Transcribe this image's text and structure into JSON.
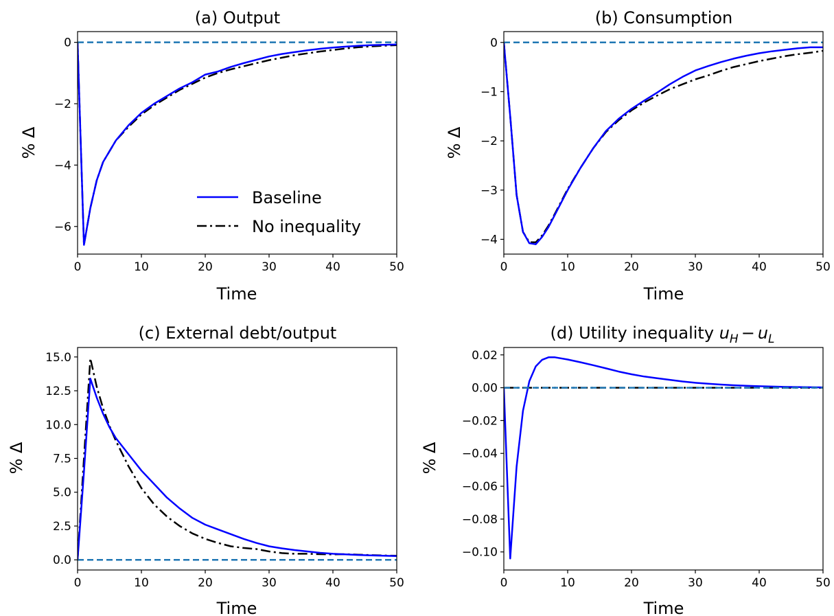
{
  "chart_data": [
    {
      "type": "line",
      "title": "(a) Output",
      "xlabel": "Time",
      "ylabel": "% Δ",
      "xlim": [
        0,
        50
      ],
      "ylim": [
        -6.9,
        0.35
      ],
      "xticks": [
        "0",
        "10",
        "20",
        "30",
        "40",
        "50"
      ],
      "yticks": [
        "0",
        "−2",
        "−4",
        "−6"
      ],
      "ytick_values": [
        0,
        -2,
        -4,
        -6
      ],
      "grid": false,
      "legend_position": "lower-right",
      "legend": [
        "Baseline",
        "No inequality"
      ],
      "series": [
        {
          "name": "Baseline",
          "color": "#0000ff",
          "style": "solid",
          "x": [
            0,
            1,
            2,
            3,
            4,
            6,
            8,
            10,
            12,
            14,
            16,
            18,
            20,
            22,
            24,
            26,
            28,
            30,
            32,
            34,
            36,
            38,
            40,
            42,
            44,
            46,
            48,
            50
          ],
          "y": [
            0,
            -6.6,
            -5.4,
            -4.5,
            -3.9,
            -3.2,
            -2.7,
            -2.3,
            -2.0,
            -1.75,
            -1.5,
            -1.3,
            -1.05,
            -0.95,
            -0.8,
            -0.68,
            -0.57,
            -0.46,
            -0.38,
            -0.32,
            -0.26,
            -0.21,
            -0.17,
            -0.14,
            -0.11,
            -0.09,
            -0.08,
            -0.07
          ]
        },
        {
          "name": "No inequality",
          "color": "#000000",
          "style": "dashdot",
          "x": [
            0,
            1,
            2,
            3,
            4,
            6,
            8,
            10,
            12,
            14,
            16,
            18,
            20,
            22,
            24,
            26,
            28,
            30,
            32,
            34,
            36,
            38,
            40,
            42,
            44,
            46,
            48,
            50
          ],
          "y": [
            0,
            -6.6,
            -5.4,
            -4.5,
            -3.9,
            -3.2,
            -2.75,
            -2.35,
            -2.05,
            -1.8,
            -1.55,
            -1.35,
            -1.15,
            -1.0,
            -0.88,
            -0.78,
            -0.68,
            -0.58,
            -0.5,
            -0.42,
            -0.36,
            -0.3,
            -0.25,
            -0.2,
            -0.16,
            -0.13,
            -0.11,
            -0.09
          ]
        },
        {
          "name": "",
          "color": "#1f77b4",
          "style": "dashed",
          "x": [
            0,
            50
          ],
          "y": [
            0,
            0
          ]
        }
      ]
    },
    {
      "type": "line",
      "title": "(b) Consumption",
      "xlabel": "Time",
      "ylabel": "% Δ",
      "xlim": [
        0,
        50
      ],
      "ylim": [
        -4.3,
        0.22
      ],
      "xticks": [
        "0",
        "10",
        "20",
        "30",
        "40",
        "50"
      ],
      "yticks": [
        "0",
        "−1",
        "−2",
        "−3",
        "−4"
      ],
      "ytick_values": [
        0,
        -1,
        -2,
        -3,
        -4
      ],
      "grid": false,
      "series": [
        {
          "name": "Baseline",
          "color": "#0000ff",
          "style": "solid",
          "x": [
            0,
            1,
            2,
            3,
            4,
            5,
            6,
            7,
            8,
            10,
            12,
            14,
            16,
            18,
            20,
            22,
            24,
            26,
            28,
            30,
            32,
            34,
            36,
            38,
            40,
            42,
            44,
            46,
            48,
            50
          ],
          "y": [
            0,
            -1.5,
            -3.1,
            -3.85,
            -4.08,
            -4.1,
            -3.95,
            -3.75,
            -3.5,
            -3.0,
            -2.55,
            -2.15,
            -1.8,
            -1.55,
            -1.35,
            -1.18,
            -1.02,
            -0.85,
            -0.7,
            -0.57,
            -0.48,
            -0.4,
            -0.33,
            -0.27,
            -0.22,
            -0.18,
            -0.15,
            -0.12,
            -0.1,
            -0.1
          ]
        },
        {
          "name": "No inequality",
          "color": "#000000",
          "style": "dashdot",
          "x": [
            0,
            1,
            2,
            3,
            4,
            5,
            6,
            7,
            8,
            10,
            12,
            14,
            16,
            18,
            20,
            22,
            24,
            26,
            28,
            30,
            32,
            34,
            36,
            38,
            40,
            42,
            44,
            46,
            48,
            50
          ],
          "y": [
            0,
            -1.5,
            -3.1,
            -3.85,
            -4.06,
            -4.06,
            -3.92,
            -3.72,
            -3.48,
            -2.98,
            -2.55,
            -2.15,
            -1.82,
            -1.58,
            -1.38,
            -1.22,
            -1.08,
            -0.95,
            -0.85,
            -0.75,
            -0.67,
            -0.58,
            -0.5,
            -0.44,
            -0.38,
            -0.33,
            -0.28,
            -0.24,
            -0.21,
            -0.17
          ]
        },
        {
          "name": "",
          "color": "#1f77b4",
          "style": "dashed",
          "x": [
            0,
            50
          ],
          "y": [
            0,
            0
          ]
        }
      ]
    },
    {
      "type": "line",
      "title": "(c) External debt/output",
      "xlabel": "Time",
      "ylabel": "% Δ",
      "xlim": [
        0,
        50
      ],
      "ylim": [
        -0.75,
        15.7
      ],
      "xticks": [
        "0",
        "10",
        "20",
        "30",
        "40",
        "50"
      ],
      "yticks": [
        "0.0",
        "2.5",
        "5.0",
        "7.5",
        "10.0",
        "12.5",
        "15.0"
      ],
      "ytick_values": [
        0,
        2.5,
        5,
        7.5,
        10,
        12.5,
        15
      ],
      "grid": false,
      "series": [
        {
          "name": "Baseline",
          "color": "#0000ff",
          "style": "solid",
          "x": [
            0,
            1,
            2,
            3,
            4,
            5,
            6,
            8,
            10,
            12,
            14,
            16,
            18,
            20,
            22,
            24,
            26,
            28,
            30,
            32,
            34,
            36,
            38,
            40,
            42,
            44,
            46,
            48,
            50
          ],
          "y": [
            0,
            6.5,
            13.4,
            12.0,
            10.8,
            9.8,
            9.0,
            7.8,
            6.6,
            5.6,
            4.6,
            3.8,
            3.1,
            2.6,
            2.25,
            1.9,
            1.55,
            1.25,
            1.0,
            0.85,
            0.72,
            0.62,
            0.52,
            0.45,
            0.4,
            0.36,
            0.33,
            0.3,
            0.28
          ]
        },
        {
          "name": "No inequality",
          "color": "#000000",
          "style": "dashdot",
          "x": [
            0,
            1,
            2,
            3,
            4,
            5,
            6,
            8,
            10,
            12,
            14,
            16,
            18,
            20,
            22,
            24,
            26,
            28,
            30,
            32,
            34,
            36,
            38,
            40,
            42,
            44,
            46,
            48,
            50
          ],
          "y": [
            0,
            7.5,
            14.9,
            12.8,
            11.2,
            9.9,
            8.8,
            6.9,
            5.3,
            4.1,
            3.2,
            2.5,
            1.95,
            1.55,
            1.25,
            1.0,
            0.88,
            0.8,
            0.62,
            0.5,
            0.45,
            0.45,
            0.42,
            0.4,
            0.42,
            0.38,
            0.35,
            0.32,
            0.3
          ]
        },
        {
          "name": "",
          "color": "#1f77b4",
          "style": "dashed",
          "x": [
            0,
            50
          ],
          "y": [
            0,
            0
          ]
        }
      ]
    },
    {
      "type": "line",
      "title": "(d) Utility inequality",
      "title_math": {
        "base1": "u",
        "sub1": "H",
        "minus": "−",
        "base2": "u",
        "sub2": "L"
      },
      "xlabel": "Time",
      "ylabel": "% Δ",
      "xlim": [
        0,
        50
      ],
      "ylim": [
        -0.111,
        0.0245
      ],
      "xticks": [
        "0",
        "10",
        "20",
        "30",
        "40",
        "50"
      ],
      "yticks": [
        "0.02",
        "0.00",
        "−0.02",
        "−0.04",
        "−0.06",
        "−0.08",
        "−0.10"
      ],
      "ytick_values": [
        0.02,
        0,
        -0.02,
        -0.04,
        -0.06,
        -0.08,
        -0.1
      ],
      "grid": false,
      "series": [
        {
          "name": "Baseline",
          "color": "#0000ff",
          "style": "solid",
          "x": [
            0,
            1,
            2,
            3,
            4,
            5,
            6,
            7,
            8,
            10,
            12,
            14,
            16,
            18,
            20,
            22,
            24,
            26,
            28,
            30,
            32,
            34,
            36,
            38,
            40,
            42,
            44,
            46,
            48,
            50
          ],
          "y": [
            0,
            -0.104,
            -0.048,
            -0.014,
            0.004,
            0.013,
            0.017,
            0.0185,
            0.0185,
            0.0172,
            0.0155,
            0.0137,
            0.0118,
            0.0098,
            0.0082,
            0.0068,
            0.0058,
            0.0048,
            0.0038,
            0.003,
            0.0024,
            0.0019,
            0.0015,
            0.0012,
            0.0009,
            0.0007,
            0.0005,
            0.0004,
            0.0003,
            0.0002
          ]
        },
        {
          "name": "No inequality",
          "color": "#000000",
          "style": "dashdot",
          "x": [
            0,
            50
          ],
          "y": [
            0,
            0
          ]
        },
        {
          "name": "",
          "color": "#1f77b4",
          "style": "dashed",
          "x": [
            0,
            50
          ],
          "y": [
            0,
            0
          ]
        }
      ]
    }
  ]
}
